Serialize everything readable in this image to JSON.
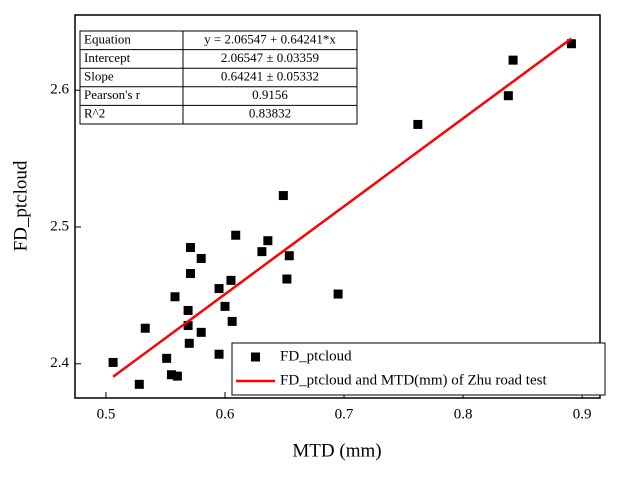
{
  "chart_data": {
    "type": "scatter",
    "xlabel": "MTD (mm)",
    "ylabel": "FD_ptcloud",
    "xlim": [
      0.474,
      0.915
    ],
    "ylim": [
      2.375,
      2.655
    ],
    "xticks": [
      0.5,
      0.6,
      0.7,
      0.8,
      0.9
    ],
    "yticks": [
      2.4,
      2.5,
      2.6
    ],
    "series": [
      {
        "name": "FD_ptcloud",
        "type": "scatter",
        "color": "#000000",
        "x": [
          0.506,
          0.528,
          0.533,
          0.551,
          0.555,
          0.56,
          0.558,
          0.569,
          0.569,
          0.57,
          0.571,
          0.571,
          0.58,
          0.58,
          0.595,
          0.595,
          0.6,
          0.605,
          0.606,
          0.609,
          0.631,
          0.636,
          0.649,
          0.652,
          0.654,
          0.695,
          0.762,
          0.838,
          0.842,
          0.891
        ],
        "values": [
          2.401,
          2.385,
          2.426,
          2.404,
          2.392,
          2.391,
          2.449,
          2.439,
          2.428,
          2.415,
          2.485,
          2.466,
          2.477,
          2.423,
          2.455,
          2.407,
          2.442,
          2.461,
          2.431,
          2.494,
          2.482,
          2.49,
          2.523,
          2.462,
          2.479,
          2.451,
          2.575,
          2.596,
          2.622,
          2.634
        ]
      },
      {
        "name": "FD_ptcloud and MTD(mm) of Zhu road test",
        "type": "line",
        "color": "#ff0000",
        "x": [
          0.506,
          0.891
        ],
        "values": [
          2.39053,
          2.63786
        ]
      }
    ],
    "stats_table": {
      "rows": [
        [
          "Equation",
          "y = 2.06547 + 0.64241*x"
        ],
        [
          "Intercept",
          "2.06547 ± 0.03359"
        ],
        [
          "Slope",
          "0.64241 ± 0.05332"
        ],
        [
          "Pearson's r",
          "0.9156"
        ],
        [
          "R^2",
          "0.83832"
        ]
      ]
    }
  }
}
